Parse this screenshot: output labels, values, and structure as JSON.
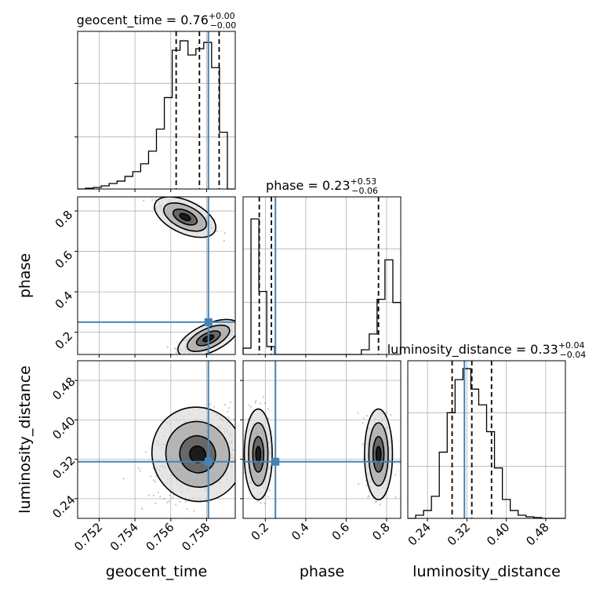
{
  "chart_data": {
    "type": "scatter",
    "subtype": "corner_plot",
    "colors": {
      "truth": "#4682b4",
      "hist": "#000000",
      "points": "#555555",
      "grid": "#b0b0b0"
    },
    "grid": true,
    "parameters": [
      {
        "name": "geocent_time",
        "label": "geocent_time",
        "title": {
          "prefix": "geocent_time = 0.76",
          "plus": "+0.00",
          "minus": "−0.00"
        },
        "range": [
          0.7508,
          0.7596
        ],
        "ticks": [
          "0.752",
          "0.754",
          "0.756",
          "0.758"
        ],
        "tick_values": [
          0.752,
          0.754,
          0.756,
          0.758
        ],
        "truth": 0.7581,
        "quantiles": [
          0.7563,
          0.7576,
          0.7587
        ],
        "hist": {
          "edges_start": 0.7508,
          "bin_width": 0.00044,
          "counts": [
            0.0,
            0.005,
            0.01,
            0.02,
            0.035,
            0.05,
            0.08,
            0.11,
            0.16,
            0.24,
            0.38,
            0.58,
            0.88,
            0.94,
            0.85,
            0.89,
            0.93,
            0.77,
            0.36,
            0.0
          ]
        }
      },
      {
        "name": "phase",
        "label": "phase",
        "title": {
          "prefix": "phase = 0.23",
          "plus": "+0.53",
          "minus": "−0.06"
        },
        "range": [
          0.09,
          0.87
        ],
        "ticks": [
          "0.2",
          "0.4",
          "0.6",
          "0.8"
        ],
        "tick_values": [
          0.2,
          0.4,
          0.6,
          0.8
        ],
        "truth": 0.25,
        "quantiles": [
          0.17,
          0.23,
          0.76
        ],
        "hist": {
          "edges_start": 0.09,
          "bin_width": 0.039,
          "counts": [
            0.04,
            0.86,
            0.4,
            0.05,
            0.0,
            0.0,
            0.0,
            0.0,
            0.0,
            0.0,
            0.0,
            0.0,
            0.0,
            0.0,
            0.0,
            0.03,
            0.13,
            0.35,
            0.6,
            0.33
          ]
        }
      },
      {
        "name": "luminosity_distance",
        "label": "luminosity_distance",
        "title": {
          "prefix": "luminosity_distance = 0.33",
          "plus": "+0.04",
          "minus": "−0.04"
        },
        "range": [
          0.2,
          0.52
        ],
        "ticks": [
          "0.24",
          "0.32",
          "0.40",
          "0.48"
        ],
        "tick_values": [
          0.24,
          0.32,
          0.4,
          0.48
        ],
        "truth": 0.315,
        "quantiles": [
          0.29,
          0.33,
          0.37
        ],
        "hist": {
          "edges_start": 0.2,
          "bin_width": 0.016,
          "counts": [
            0.0,
            0.02,
            0.05,
            0.14,
            0.42,
            0.67,
            0.88,
            0.95,
            0.82,
            0.72,
            0.55,
            0.32,
            0.12,
            0.05,
            0.02,
            0.01,
            0.005,
            0.0,
            0.0,
            0.0
          ]
        }
      }
    ],
    "clusters": {
      "geocent_time-phase": [
        {
          "mean": [
            0.7568,
            0.77
          ],
          "sd": [
            0.0008,
            0.035
          ],
          "rho": -0.75,
          "n": 260
        },
        {
          "mean": [
            0.7581,
            0.17
          ],
          "sd": [
            0.0008,
            0.03
          ],
          "rho": 0.75,
          "n": 300
        }
      ],
      "geocent_time-luminosity_distance": [
        {
          "mean": [
            0.7575,
            0.33
          ],
          "sd": [
            0.0011,
            0.042
          ],
          "rho": 0.35,
          "n": 650
        }
      ],
      "phase-luminosity_distance": [
        {
          "mean": [
            0.165,
            0.33
          ],
          "sd": [
            0.03,
            0.04
          ],
          "rho": 0.0,
          "n": 300
        },
        {
          "mean": [
            0.76,
            0.33
          ],
          "sd": [
            0.03,
            0.04
          ],
          "rho": 0.0,
          "n": 300
        }
      ]
    }
  }
}
